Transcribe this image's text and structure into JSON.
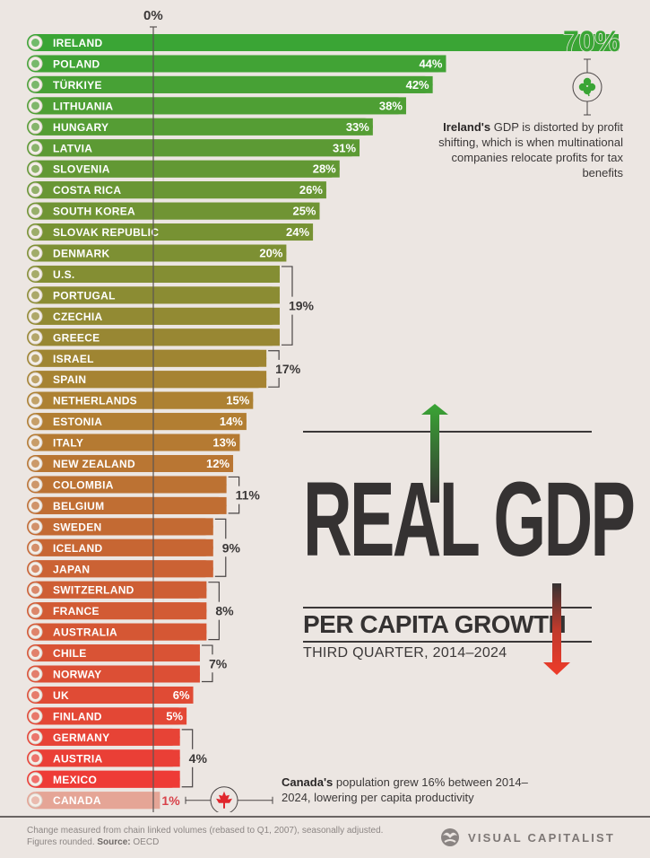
{
  "chart_data": {
    "type": "bar",
    "orientation": "horizontal",
    "title": "Real GDP",
    "subtitle": "Per Capita Growth",
    "period": "Third Quarter, 2014–2024",
    "axis_zero_label": "0%",
    "unit": "%",
    "xlim": [
      0,
      70
    ],
    "categories": [
      "IRELAND",
      "POLAND",
      "TÜRKIYE",
      "LITHUANIA",
      "HUNGARY",
      "LATVIA",
      "SLOVENIA",
      "COSTA RICA",
      "SOUTH KOREA",
      "SLOVAK REPUBLIC",
      "DENMARK",
      "U.S.",
      "PORTUGAL",
      "CZECHIA",
      "GREECE",
      "ISRAEL",
      "SPAIN",
      "NETHERLANDS",
      "ESTONIA",
      "ITALY",
      "NEW ZEALAND",
      "COLOMBIA",
      "BELGIUM",
      "SWEDEN",
      "ICELAND",
      "JAPAN",
      "SWITZERLAND",
      "FRANCE",
      "AUSTRALIA",
      "CHILE",
      "NORWAY",
      "UK",
      "FINLAND",
      "GERMANY",
      "AUSTRIA",
      "MEXICO",
      "CANADA"
    ],
    "values": [
      70,
      44,
      42,
      38,
      33,
      31,
      28,
      26,
      25,
      24,
      20,
      19,
      19,
      19,
      19,
      17,
      17,
      15,
      14,
      13,
      12,
      11,
      11,
      9,
      9,
      9,
      8,
      8,
      8,
      7,
      7,
      6,
      5,
      4,
      4,
      4,
      1
    ],
    "value_labels": [
      "70%",
      "44%",
      "42%",
      "38%",
      "33%",
      "31%",
      "28%",
      "26%",
      "25%",
      "24%",
      "20%",
      "",
      "",
      "",
      "",
      "",
      "",
      "15%",
      "14%",
      "13%",
      "12%",
      "",
      "",
      "",
      "",
      "",
      "",
      "",
      "",
      "",
      "",
      "6%",
      "5%",
      "",
      "",
      "",
      "1%"
    ],
    "groups": [
      {
        "label": "19%",
        "from": "U.S.",
        "to": "GREECE"
      },
      {
        "label": "17%",
        "from": "ISRAEL",
        "to": "SPAIN"
      },
      {
        "label": "11%",
        "from": "COLOMBIA",
        "to": "BELGIUM"
      },
      {
        "label": "9%",
        "from": "SWEDEN",
        "to": "JAPAN"
      },
      {
        "label": "8%",
        "from": "SWITZERLAND",
        "to": "AUSTRALIA"
      },
      {
        "label": "7%",
        "from": "CHILE",
        "to": "NORWAY"
      },
      {
        "label": "4%",
        "from": "GERMANY",
        "to": "MEXICO"
      }
    ],
    "flags": [
      "ireland-flag",
      "poland-flag",
      "turkiye-flag",
      "lithuania-flag",
      "hungary-flag",
      "latvia-flag",
      "slovenia-flag",
      "costa-rica-flag",
      "south-korea-flag",
      "slovak-republic-flag",
      "denmark-flag",
      "us-flag",
      "portugal-flag",
      "czechia-flag",
      "greece-flag",
      "israel-flag",
      "spain-flag",
      "netherlands-flag",
      "estonia-flag",
      "italy-flag",
      "new-zealand-flag",
      "colombia-flag",
      "belgium-flag",
      "sweden-flag",
      "iceland-flag",
      "japan-flag",
      "switzerland-flag",
      "france-flag",
      "australia-flag",
      "chile-flag",
      "norway-flag",
      "uk-flag",
      "finland-flag",
      "germany-flag",
      "austria-flag",
      "mexico-flag",
      "canada-flag"
    ],
    "color_top": "#3aa535",
    "color_bottom": "#ee3b36",
    "canada_color": "#e5a596"
  },
  "annotations": {
    "ireland_bold": "Ireland's",
    "ireland_text": " GDP is distorted by profit shifting, which is when multinational companies relocate profits for tax benefits",
    "canada_bold": "Canada's",
    "canada_text": " population grew 16% between 2014–2024, lowering per capita productivity",
    "ireland_icon": "shamrock-icon",
    "canada_icon": "maple-leaf-icon"
  },
  "title": {
    "main": "REAL GDP",
    "sub": "PER CAPITA GROWTH",
    "date": "THIRD QUARTER, 2014–2024"
  },
  "footer": {
    "note_line1": "Change measured from chain linked volumes (rebased to Q1, 2007), seasonally adjusted.",
    "note_line2": "Figures rounded. ",
    "source_label": "Source:",
    "source": " OECD",
    "brand": "VISUAL CAPITALIST"
  }
}
